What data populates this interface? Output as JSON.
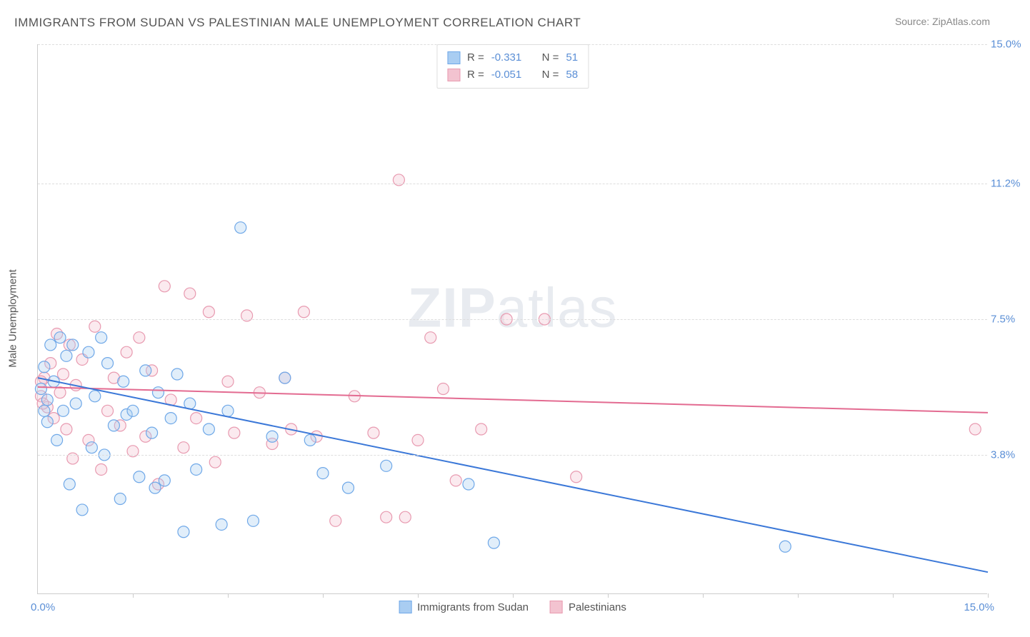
{
  "title": "IMMIGRANTS FROM SUDAN VS PALESTINIAN MALE UNEMPLOYMENT CORRELATION CHART",
  "source": "Source: ZipAtlas.com",
  "y_axis_label": "Male Unemployment",
  "watermark": {
    "bold": "ZIP",
    "light": "atlas"
  },
  "chart": {
    "type": "scatter",
    "xlim": [
      0,
      15
    ],
    "ylim": [
      0,
      15
    ],
    "x_origin_label": "0.0%",
    "x_max_label": "15.0%",
    "y_ticks": [
      {
        "value": 3.8,
        "label": "3.8%"
      },
      {
        "value": 7.5,
        "label": "7.5%"
      },
      {
        "value": 11.2,
        "label": "11.2%"
      },
      {
        "value": 15.0,
        "label": "15.0%"
      }
    ],
    "x_tick_positions": [
      1.5,
      3.0,
      4.5,
      6.0,
      7.5,
      9.0,
      10.5,
      12.0,
      13.5,
      15.0
    ],
    "background_color": "#ffffff",
    "grid_color": "#dddddd",
    "marker_radius": 8,
    "marker_stroke_width": 1.2,
    "marker_fill_opacity": 0.35,
    "line_width": 2
  },
  "series": {
    "sudan": {
      "label": "Immigrants from Sudan",
      "color_stroke": "#6fa8e8",
      "color_fill": "#a9cdf2",
      "line_color": "#3b78d8",
      "R_label": "R =",
      "R": "-0.331",
      "N_label": "N =",
      "N": "51",
      "regression": {
        "x1": 0,
        "y1": 5.9,
        "x2": 15,
        "y2": 0.6
      },
      "points": [
        [
          0.05,
          5.6
        ],
        [
          0.1,
          5.0
        ],
        [
          0.1,
          6.2
        ],
        [
          0.15,
          4.7
        ],
        [
          0.15,
          5.3
        ],
        [
          0.2,
          6.8
        ],
        [
          0.25,
          5.8
        ],
        [
          0.3,
          4.2
        ],
        [
          0.35,
          7.0
        ],
        [
          0.4,
          5.0
        ],
        [
          0.45,
          6.5
        ],
        [
          0.5,
          3.0
        ],
        [
          0.55,
          6.8
        ],
        [
          0.6,
          5.2
        ],
        [
          0.7,
          2.3
        ],
        [
          0.8,
          6.6
        ],
        [
          0.85,
          4.0
        ],
        [
          0.9,
          5.4
        ],
        [
          1.0,
          7.0
        ],
        [
          1.05,
          3.8
        ],
        [
          1.1,
          6.3
        ],
        [
          1.2,
          4.6
        ],
        [
          1.3,
          2.6
        ],
        [
          1.35,
          5.8
        ],
        [
          1.4,
          4.9
        ],
        [
          1.5,
          5.0
        ],
        [
          1.6,
          3.2
        ],
        [
          1.7,
          6.1
        ],
        [
          1.8,
          4.4
        ],
        [
          1.85,
          2.9
        ],
        [
          1.9,
          5.5
        ],
        [
          2.0,
          3.1
        ],
        [
          2.1,
          4.8
        ],
        [
          2.2,
          6.0
        ],
        [
          2.3,
          1.7
        ],
        [
          2.4,
          5.2
        ],
        [
          2.5,
          3.4
        ],
        [
          2.7,
          4.5
        ],
        [
          2.9,
          1.9
        ],
        [
          3.0,
          5.0
        ],
        [
          3.2,
          10.0
        ],
        [
          3.4,
          2.0
        ],
        [
          3.7,
          4.3
        ],
        [
          3.9,
          5.9
        ],
        [
          4.3,
          4.2
        ],
        [
          4.5,
          3.3
        ],
        [
          4.9,
          2.9
        ],
        [
          5.5,
          3.5
        ],
        [
          6.8,
          3.0
        ],
        [
          7.2,
          1.4
        ],
        [
          11.8,
          1.3
        ]
      ]
    },
    "palestinian": {
      "label": "Palestinians",
      "color_stroke": "#e89ab0",
      "color_fill": "#f3c3d0",
      "line_color": "#e36b91",
      "R_label": "R =",
      "R": "-0.051",
      "N_label": "N =",
      "N": "58",
      "regression": {
        "x1": 0,
        "y1": 5.65,
        "x2": 15,
        "y2": 4.95
      },
      "points": [
        [
          0.05,
          5.4
        ],
        [
          0.1,
          5.9
        ],
        [
          0.15,
          5.1
        ],
        [
          0.2,
          6.3
        ],
        [
          0.25,
          4.8
        ],
        [
          0.3,
          7.1
        ],
        [
          0.35,
          5.5
        ],
        [
          0.4,
          6.0
        ],
        [
          0.45,
          4.5
        ],
        [
          0.5,
          6.8
        ],
        [
          0.55,
          3.7
        ],
        [
          0.6,
          5.7
        ],
        [
          0.7,
          6.4
        ],
        [
          0.8,
          4.2
        ],
        [
          0.9,
          7.3
        ],
        [
          1.0,
          3.4
        ],
        [
          1.1,
          5.0
        ],
        [
          1.2,
          5.9
        ],
        [
          1.3,
          4.6
        ],
        [
          1.4,
          6.6
        ],
        [
          1.5,
          3.9
        ],
        [
          1.6,
          7.0
        ],
        [
          1.7,
          4.3
        ],
        [
          1.8,
          6.1
        ],
        [
          1.9,
          3.0
        ],
        [
          2.0,
          8.4
        ],
        [
          2.1,
          5.3
        ],
        [
          2.3,
          4.0
        ],
        [
          2.4,
          8.2
        ],
        [
          2.5,
          4.8
        ],
        [
          2.7,
          7.7
        ],
        [
          2.8,
          3.6
        ],
        [
          3.0,
          5.8
        ],
        [
          3.1,
          4.4
        ],
        [
          3.3,
          7.6
        ],
        [
          3.5,
          5.5
        ],
        [
          3.7,
          4.1
        ],
        [
          3.9,
          5.9
        ],
        [
          4.0,
          4.5
        ],
        [
          4.2,
          7.7
        ],
        [
          4.4,
          4.3
        ],
        [
          4.7,
          2.0
        ],
        [
          5.0,
          5.4
        ],
        [
          5.3,
          4.4
        ],
        [
          5.5,
          2.1
        ],
        [
          5.7,
          11.3
        ],
        [
          5.8,
          2.1
        ],
        [
          6.0,
          4.2
        ],
        [
          6.2,
          7.0
        ],
        [
          6.4,
          5.6
        ],
        [
          6.6,
          3.1
        ],
        [
          7.0,
          4.5
        ],
        [
          7.4,
          7.5
        ],
        [
          8.0,
          7.5
        ],
        [
          8.5,
          3.2
        ],
        [
          14.8,
          4.5
        ],
        [
          0.05,
          5.8
        ],
        [
          0.08,
          5.2
        ]
      ]
    }
  },
  "bottom_legend": {
    "item1": "Immigrants from Sudan",
    "item2": "Palestinians"
  }
}
